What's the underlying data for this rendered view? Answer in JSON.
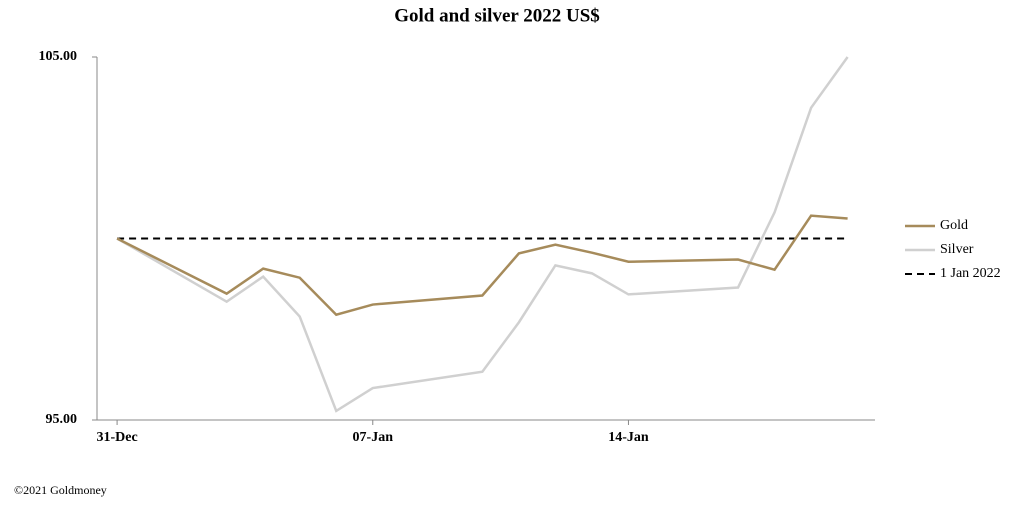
{
  "chart_data": {
    "type": "line",
    "title": "Gold and silver 2022  US$",
    "x": [
      0,
      3,
      4,
      5,
      6,
      7,
      10,
      11,
      12,
      13,
      14,
      17,
      18,
      19,
      20
    ],
    "xlim": [
      -0.55,
      20.75
    ],
    "xticks": [
      {
        "value": 0,
        "label": "31-Dec"
      },
      {
        "value": 7,
        "label": "07-Jan"
      },
      {
        "value": 14,
        "label": "14-Jan"
      }
    ],
    "ylim": [
      95,
      105
    ],
    "yticks": [
      {
        "value": 95,
        "label": "95.00"
      },
      {
        "value": 105,
        "label": "105.00"
      }
    ],
    "series": [
      {
        "name": "Gold",
        "color": "#a68b5b",
        "values": [
          100,
          98.48,
          99.17,
          98.92,
          97.9,
          98.18,
          98.43,
          99.59,
          99.83,
          99.61,
          99.36,
          99.42,
          99.14,
          100.63,
          100.55
        ]
      },
      {
        "name": "Silver",
        "color": "#d0d0d0",
        "values": [
          100,
          98.26,
          98.95,
          97.85,
          95.25,
          95.88,
          96.33,
          97.69,
          99.26,
          99.04,
          98.46,
          98.65,
          100.72,
          103.6,
          105
        ]
      }
    ],
    "reference": {
      "name": "1 Jan 2022",
      "value": 100,
      "color": "#000000"
    },
    "legend": "right",
    "footer": "©2021 Goldmoney"
  }
}
